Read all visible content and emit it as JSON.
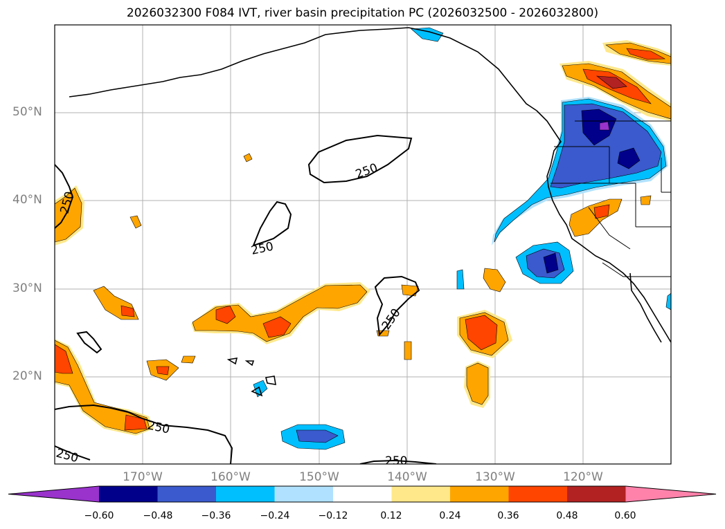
{
  "title": "2026032300 F084 IVT, river basin precipitation PC (2026032500 - 2026032800)",
  "lat_ticks": [
    "50°N",
    "40°N",
    "30°N",
    "20°N"
  ],
  "lon_ticks": [
    "170°W",
    "160°W",
    "150°W",
    "140°W",
    "130°W",
    "120°W"
  ],
  "contour_label": "250",
  "colorbar": {
    "ticks": [
      "−0.60",
      "−0.48",
      "−0.36",
      "−0.24",
      "−0.12",
      "0.12",
      "0.24",
      "0.36",
      "0.48",
      "0.60"
    ],
    "colors": [
      "#9933cc",
      "#00008b",
      "#3a5acd",
      "#00bfff",
      "#b0e2ff",
      "#ffffff",
      "#ffe88a",
      "#ffa500",
      "#ff4500",
      "#b22222",
      "#ff82ab"
    ]
  }
}
